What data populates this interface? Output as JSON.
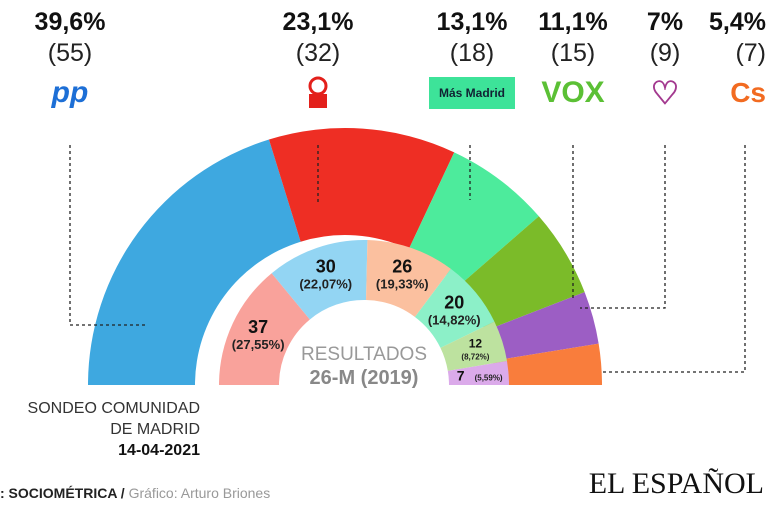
{
  "chart_data": {
    "type": "hemicycle",
    "title": "SONDEO COMUNIDAD DE MADRID",
    "date": "14-04-2021",
    "outer": [
      {
        "party": "PP",
        "pct": "39,6%",
        "seats": 55,
        "seats_label": "(55)",
        "color": "#3ea8e0"
      },
      {
        "party": "PSOE",
        "pct": "23,1%",
        "seats": 32,
        "seats_label": "(32)",
        "color": "#ee2e24"
      },
      {
        "party": "Más Madrid",
        "pct": "13,1%",
        "seats": 18,
        "seats_label": "(18)",
        "color": "#4deb9c"
      },
      {
        "party": "VOX",
        "pct": "11,1%",
        "seats": 15,
        "seats_label": "(15)",
        "color": "#7bbb29"
      },
      {
        "party": "Unidas Podemos",
        "pct": "7%",
        "seats": 9,
        "seats_label": "(9)",
        "color": "#9c5ec4"
      },
      {
        "party": "Cs",
        "pct": "5,4%",
        "seats": 7,
        "seats_label": "(7)",
        "color": "#f97d3c"
      }
    ],
    "inner": [
      {
        "seats": 37,
        "pct": "(27,55%)",
        "color": "#f9a29b"
      },
      {
        "seats": 30,
        "pct": "(22,07%)",
        "color": "#93d5f3"
      },
      {
        "seats": 26,
        "pct": "(19,33%)",
        "color": "#fbc09f"
      },
      {
        "seats": 20,
        "pct": "(14,82%)",
        "color": "#8cf0c8"
      },
      {
        "seats": 12,
        "pct": "(8,72%)",
        "color": "#bde29f"
      },
      {
        "seats": 7,
        "pct": "(5,59%)",
        "color": "#dbaaea"
      }
    ],
    "inner_title": "RESULTADOS",
    "inner_subtitle": "26-M (2019)"
  },
  "logos": {
    "pp": "pp",
    "mm": "Más Madrid",
    "vox": "VOX",
    "cs": "Cs"
  },
  "note": {
    "line1": "SONDEO COMUNIDAD",
    "line2": "DE MADRID",
    "date": "14-04-2021"
  },
  "footer": {
    "source": ": SOCIOMÉTRICA",
    "sep": " / ",
    "credit": "Gráfico: Arturo Briones",
    "brand": "EL ESPAÑOL"
  }
}
